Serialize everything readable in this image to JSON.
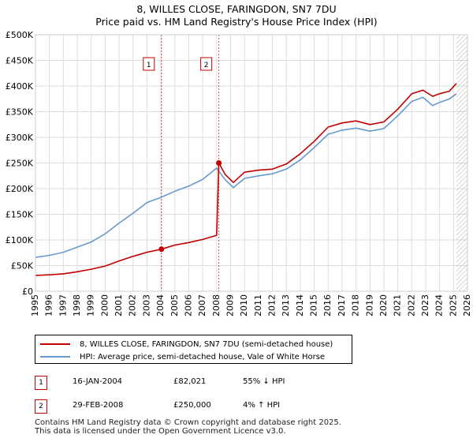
{
  "header": {
    "title": "8, WILLES CLOSE, FARINGDON, SN7 7DU",
    "subtitle": "Price paid vs. HM Land Registry's House Price Index (HPI)"
  },
  "legend": {
    "property_label": "8, WILLES CLOSE, FARINGDON, SN7 7DU (semi-detached house)",
    "hpi_label": "HPI: Average price, semi-detached house, Vale of White Horse"
  },
  "transactions": [
    {
      "num": "1",
      "date": "16-JAN-2004",
      "price": "£82,021",
      "hpi_change": "55% ↓ HPI"
    },
    {
      "num": "2",
      "date": "29-FEB-2008",
      "price": "£250,000",
      "hpi_change": "4% ↑ HPI"
    }
  ],
  "footer": {
    "line1": "Contains HM Land Registry data © Crown copyright and database right 2025.",
    "line2": "This data is licensed under the Open Government Licence v3.0."
  },
  "chart_data": {
    "type": "line",
    "title": "8, WILLES CLOSE, FARINGDON, SN7 7DU",
    "subtitle": "Price paid vs. HM Land Registry's House Price Index (HPI)",
    "xlabel": "",
    "ylabel": "",
    "xlim": [
      1995,
      2026
    ],
    "ylim": [
      0,
      500000
    ],
    "y_ticks": [
      0,
      50000,
      100000,
      150000,
      200000,
      250000,
      300000,
      350000,
      400000,
      450000,
      500000
    ],
    "y_tick_labels": [
      "£0",
      "£50K",
      "£100K",
      "£150K",
      "£200K",
      "£250K",
      "£300K",
      "£350K",
      "£400K",
      "£450K",
      "£500K"
    ],
    "x_ticks": [
      1995,
      1996,
      1997,
      1998,
      1999,
      2000,
      2001,
      2002,
      2003,
      2004,
      2005,
      2006,
      2007,
      2008,
      2009,
      2010,
      2011,
      2012,
      2013,
      2014,
      2015,
      2016,
      2017,
      2018,
      2019,
      2020,
      2021,
      2022,
      2023,
      2024,
      2025,
      2026
    ],
    "x_tick_labels": [
      "1995",
      "1996",
      "1997",
      "1998",
      "1999",
      "2000",
      "2001",
      "2002",
      "2003",
      "2004",
      "2005",
      "2006",
      "2007",
      "2008",
      "2009",
      "2010",
      "2011",
      "2012",
      "2013",
      "2014",
      "2015",
      "2016",
      "2017",
      "2018",
      "2019",
      "2020",
      "2021",
      "2022",
      "2023",
      "2024",
      "2025",
      "2026"
    ],
    "grid": true,
    "future_hatch_start": 2025.2,
    "colors": {
      "property": "#c00000",
      "hpi": "#6699cc",
      "marker_line": "#c00000",
      "grid": "#dddddd"
    },
    "series": [
      {
        "name": "8, WILLES CLOSE, FARINGDON, SN7 7DU (semi-detached house)",
        "x": [
          1995.0,
          1996.0,
          1997.0,
          1998.0,
          1999.0,
          2000.0,
          2001.0,
          2002.0,
          2003.0,
          2004.04,
          2005.0,
          2006.0,
          2007.0,
          2008.0,
          2008.16,
          2008.6,
          2009.2,
          2010.0,
          2011.0,
          2012.0,
          2013.0,
          2014.0,
          2015.0,
          2016.0,
          2017.0,
          2018.0,
          2019.0,
          2020.0,
          2021.0,
          2022.0,
          2022.8,
          2023.5,
          2024.0,
          2024.7,
          2025.2
        ],
        "values": [
          31000,
          32000,
          34000,
          38000,
          43000,
          49000,
          59000,
          68000,
          76000,
          82021,
          90000,
          95000,
          101000,
          109000,
          250000,
          228000,
          212000,
          232000,
          236000,
          238000,
          248000,
          268000,
          292000,
          320000,
          328000,
          332000,
          325000,
          330000,
          355000,
          385000,
          392000,
          380000,
          385000,
          390000,
          405000
        ]
      },
      {
        "name": "HPI: Average price, semi-detached house, Vale of White Horse",
        "x": [
          1995.0,
          1996.0,
          1997.0,
          1998.0,
          1999.0,
          2000.0,
          2001.0,
          2002.0,
          2003.0,
          2004.0,
          2005.0,
          2006.0,
          2007.0,
          2008.0,
          2008.6,
          2009.2,
          2010.0,
          2011.0,
          2012.0,
          2013.0,
          2014.0,
          2015.0,
          2016.0,
          2017.0,
          2018.0,
          2019.0,
          2020.0,
          2021.0,
          2022.0,
          2022.8,
          2023.5,
          2024.0,
          2024.7,
          2025.2
        ],
        "values": [
          66000,
          70000,
          76000,
          86000,
          96000,
          112000,
          133000,
          152000,
          173000,
          183000,
          195000,
          205000,
          218000,
          240000,
          218000,
          202000,
          220000,
          225000,
          229000,
          238000,
          256000,
          280000,
          306000,
          314000,
          318000,
          312000,
          317000,
          342000,
          370000,
          378000,
          362000,
          368000,
          375000,
          385000
        ]
      }
    ],
    "markers": [
      {
        "label": "1",
        "x": 2004.04,
        "y": 82021
      },
      {
        "label": "2",
        "x": 2008.16,
        "y": 250000
      }
    ]
  }
}
